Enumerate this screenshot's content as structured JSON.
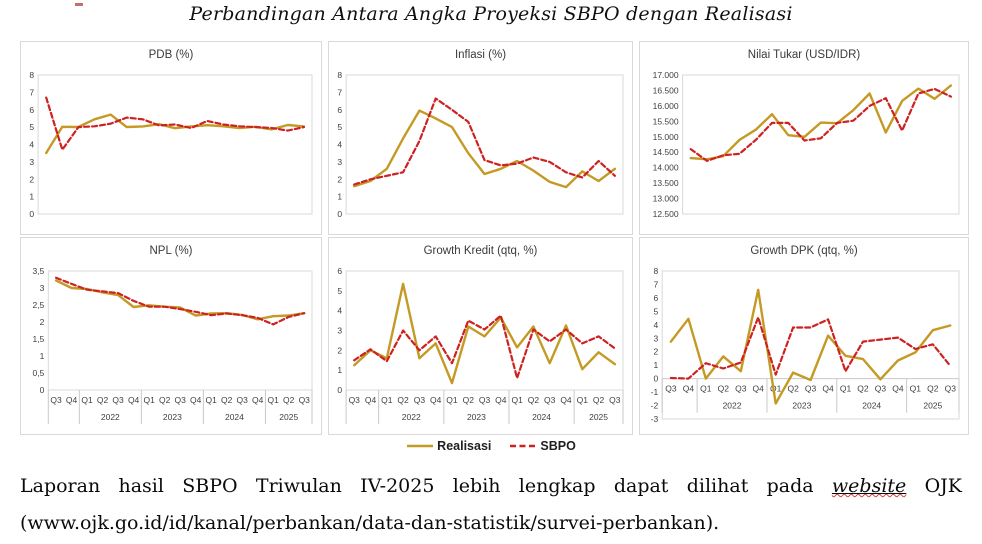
{
  "title": "Perbandingan Antara Angka Proyeksi SBPO dengan Realisasi",
  "legend": {
    "realisasi": "Realisasi",
    "sbpo": "SBPO"
  },
  "colors": {
    "realisasi": "#C49A24",
    "sbpo": "#CE2121",
    "plot_border": "#D9D9D9",
    "separator": "#C9C9C9",
    "axis_text": "#404040"
  },
  "footer": {
    "before": "Laporan hasil SBPO Triwulan IV-2025 lebih lengkap dapat dilihat pada ",
    "website_word": "website",
    "after": " OJK",
    "line2": "(www.ojk.go.id/id/kanal/perbankan/data-dan-statistik/survei-perbankan)."
  },
  "x_axis": {
    "quarters": [
      "Q3",
      "Q4",
      "Q1",
      "Q2",
      "Q3",
      "Q4",
      "Q1",
      "Q2",
      "Q3",
      "Q4",
      "Q1",
      "Q2",
      "Q3",
      "Q4",
      "Q1",
      "Q2",
      "Q3"
    ],
    "year_groups": [
      {
        "label": "",
        "count": 2
      },
      {
        "label": "2022",
        "count": 4
      },
      {
        "label": "2023",
        "count": 4
      },
      {
        "label": "2024",
        "count": 4
      },
      {
        "label": "2025",
        "count": 3
      }
    ]
  },
  "chart_data": [
    {
      "type": "line",
      "title": "PDB (%)",
      "ylim": [
        0,
        8
      ],
      "show_x_labels": false,
      "yticks": [
        {
          "v": 0,
          "label": "0"
        },
        {
          "v": 1,
          "label": "1"
        },
        {
          "v": 2,
          "label": "2"
        },
        {
          "v": 3,
          "label": "3"
        },
        {
          "v": 4,
          "label": "4"
        },
        {
          "v": 5,
          "label": "5"
        },
        {
          "v": 6,
          "label": "6"
        },
        {
          "v": 7,
          "label": "7"
        },
        {
          "v": 8,
          "label": "8"
        }
      ],
      "series": [
        {
          "name": "Realisasi",
          "values": [
            3.51,
            5.02,
            5.01,
            5.45,
            5.72,
            5.01,
            5.04,
            5.17,
            4.94,
            5.04,
            5.11,
            5.05,
            4.95,
            5.02,
            4.87,
            5.12,
            5.04
          ]
        },
        {
          "name": "SBPO",
          "values": [
            6.7,
            3.7,
            5.0,
            5.05,
            5.2,
            5.55,
            5.45,
            5.1,
            5.15,
            4.95,
            5.35,
            5.15,
            5.05,
            5.0,
            4.95,
            4.8,
            5.0
          ]
        }
      ]
    },
    {
      "type": "line",
      "title": "Inflasi (%)",
      "ylim": [
        0,
        8
      ],
      "show_x_labels": false,
      "yticks": [
        {
          "v": 0,
          "label": "0"
        },
        {
          "v": 1,
          "label": "1"
        },
        {
          "v": 2,
          "label": "2"
        },
        {
          "v": 3,
          "label": "3"
        },
        {
          "v": 4,
          "label": "4"
        },
        {
          "v": 5,
          "label": "5"
        },
        {
          "v": 6,
          "label": "6"
        },
        {
          "v": 7,
          "label": "7"
        },
        {
          "v": 8,
          "label": "8"
        }
      ],
      "series": [
        {
          "name": "Realisasi",
          "values": [
            1.6,
            1.9,
            2.6,
            4.35,
            5.95,
            5.5,
            5.0,
            3.5,
            2.3,
            2.6,
            3.05,
            2.5,
            1.85,
            1.55,
            2.45,
            1.9,
            2.6
          ]
        },
        {
          "name": "SBPO",
          "values": [
            1.7,
            2.0,
            2.2,
            2.4,
            4.2,
            6.65,
            6.0,
            5.3,
            3.1,
            2.8,
            2.9,
            3.25,
            3.0,
            2.4,
            2.1,
            3.05,
            2.2
          ]
        }
      ]
    },
    {
      "type": "line",
      "title": "Nilai Tukar (USD/IDR)",
      "ylim": [
        12500,
        17000
      ],
      "show_x_labels": false,
      "yticks": [
        {
          "v": 12500,
          "label": "12.500"
        },
        {
          "v": 13000,
          "label": "13.000"
        },
        {
          "v": 13500,
          "label": "13.500"
        },
        {
          "v": 14000,
          "label": "14.000"
        },
        {
          "v": 14500,
          "label": "14.500"
        },
        {
          "v": 15000,
          "label": "15.000"
        },
        {
          "v": 15500,
          "label": "15.500"
        },
        {
          "v": 16000,
          "label": "16.000"
        },
        {
          "v": 16500,
          "label": "16.500"
        },
        {
          "v": 17000,
          "label": "17.000"
        }
      ],
      "series": [
        {
          "name": "Realisasi",
          "values": [
            14310,
            14270,
            14370,
            14900,
            15230,
            15730,
            15050,
            15000,
            15460,
            15440,
            15860,
            16400,
            15140,
            16160,
            16560,
            16230,
            16660
          ]
        },
        {
          "name": "SBPO",
          "values": [
            14600,
            14220,
            14400,
            14450,
            14900,
            15450,
            15450,
            14880,
            14950,
            15450,
            15520,
            16000,
            16250,
            15200,
            16400,
            16550,
            16300
          ]
        }
      ]
    },
    {
      "type": "line",
      "title": "NPL (%)",
      "ylim": [
        0,
        3.5
      ],
      "show_x_labels": true,
      "yticks": [
        {
          "v": 0,
          "label": "0"
        },
        {
          "v": 0.5,
          "label": "0,5"
        },
        {
          "v": 1,
          "label": "1"
        },
        {
          "v": 1.5,
          "label": "1,5"
        },
        {
          "v": 2,
          "label": "2"
        },
        {
          "v": 2.5,
          "label": "2,5"
        },
        {
          "v": 3,
          "label": "3"
        },
        {
          "v": 3.5,
          "label": "3,5"
        }
      ],
      "series": [
        {
          "name": "Realisasi",
          "values": [
            3.22,
            3.0,
            2.97,
            2.87,
            2.79,
            2.44,
            2.49,
            2.45,
            2.43,
            2.19,
            2.25,
            2.26,
            2.21,
            2.08,
            2.17,
            2.19,
            2.26
          ]
        },
        {
          "name": "SBPO",
          "values": [
            3.3,
            3.12,
            2.95,
            2.9,
            2.85,
            2.62,
            2.45,
            2.45,
            2.38,
            2.3,
            2.2,
            2.25,
            2.2,
            2.12,
            1.93,
            2.15,
            2.26
          ]
        }
      ]
    },
    {
      "type": "line",
      "title": "Growth Kredit (qtq, %)",
      "ylim": [
        0,
        6
      ],
      "show_x_labels": true,
      "yticks": [
        {
          "v": 0,
          "label": "0"
        },
        {
          "v": 1,
          "label": "1"
        },
        {
          "v": 2,
          "label": "2"
        },
        {
          "v": 3,
          "label": "3"
        },
        {
          "v": 4,
          "label": "4"
        },
        {
          "v": 5,
          "label": "5"
        },
        {
          "v": 6,
          "label": "6"
        }
      ],
      "series": [
        {
          "name": "Realisasi",
          "values": [
            1.25,
            2.0,
            1.6,
            5.35,
            1.6,
            2.35,
            0.35,
            3.2,
            2.7,
            3.65,
            2.15,
            3.2,
            1.35,
            3.25,
            1.05,
            1.9,
            1.3
          ]
        },
        {
          "name": "SBPO",
          "values": [
            1.5,
            2.05,
            1.45,
            3.0,
            2.0,
            2.7,
            1.35,
            3.5,
            3.05,
            3.75,
            0.6,
            3.05,
            2.45,
            3.05,
            2.35,
            2.7,
            2.1
          ]
        }
      ]
    },
    {
      "type": "line",
      "title": "Growth DPK (qtq, %)",
      "ylim": [
        -3,
        8
      ],
      "show_x_labels": true,
      "yticks": [
        {
          "v": -3,
          "label": "-3"
        },
        {
          "v": -2,
          "label": "-2"
        },
        {
          "v": -1,
          "label": "-1"
        },
        {
          "v": 0,
          "label": "0"
        },
        {
          "v": 1,
          "label": "1"
        },
        {
          "v": 2,
          "label": "2"
        },
        {
          "v": 3,
          "label": "3"
        },
        {
          "v": 4,
          "label": "4"
        },
        {
          "v": 5,
          "label": "5"
        },
        {
          "v": 6,
          "label": "6"
        },
        {
          "v": 7,
          "label": "7"
        },
        {
          "v": 8,
          "label": "8"
        }
      ],
      "series": [
        {
          "name": "Realisasi",
          "values": [
            2.75,
            4.45,
            0.0,
            1.65,
            0.55,
            6.6,
            -1.85,
            0.45,
            -0.1,
            3.2,
            1.7,
            1.45,
            -0.05,
            1.35,
            1.95,
            3.6,
            3.95
          ]
        },
        {
          "name": "SBPO",
          "values": [
            0.05,
            0.0,
            1.15,
            0.75,
            1.2,
            4.55,
            0.3,
            3.8,
            3.8,
            4.4,
            0.55,
            2.75,
            2.9,
            3.05,
            2.2,
            2.55,
            0.95
          ]
        }
      ]
    }
  ]
}
